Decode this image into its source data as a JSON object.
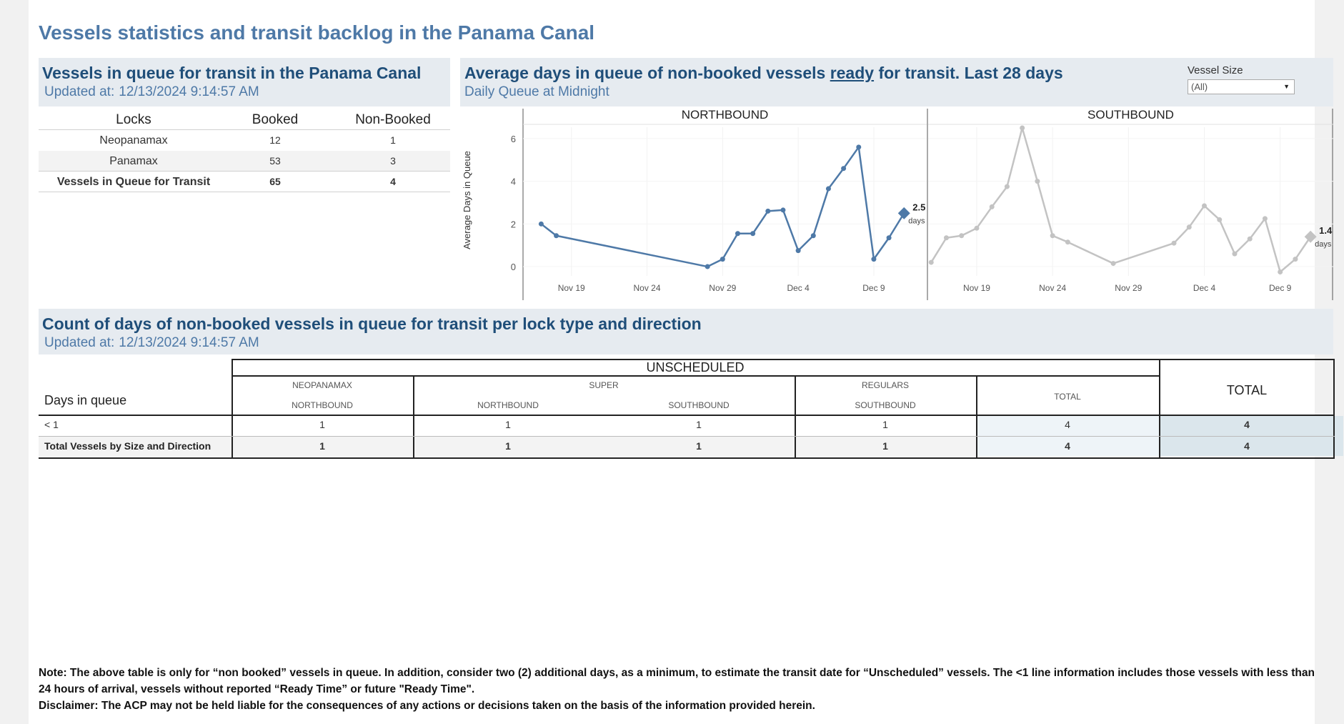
{
  "page": {
    "title": "Vessels statistics and transit backlog in the Panama Canal"
  },
  "queue_panel": {
    "title": "Vessels in queue for transit in the Panama Canal",
    "updated_label": "Updated at:",
    "updated_value": "12/13/2024 9:14:57 AM",
    "columns": [
      "Locks",
      "Booked",
      "Non-Booked"
    ],
    "rows": [
      {
        "lock": "Neopanamax",
        "booked": "12",
        "non_booked": "1"
      },
      {
        "lock": "Panamax",
        "booked": "53",
        "non_booked": "3"
      },
      {
        "lock": "Vessels in Queue for Transit",
        "booked": "65",
        "non_booked": "4"
      }
    ]
  },
  "days_panel": {
    "title_pre": "Average days in queue of non-booked vessels ",
    "title_link": "ready",
    "title_post": " for transit. Last 28 days",
    "subtitle": "Daily Queue at Midnight"
  },
  "vessel_size_filter": {
    "label": "Vessel Size",
    "value": "(All)",
    "icon": "chevron-down-icon"
  },
  "chart_data": [
    {
      "type": "line",
      "title": "NORTHBOUND",
      "ylabel": "Average Days in Queue",
      "ylim": [
        -0.3,
        6.8
      ],
      "yticks": [
        0,
        2,
        4,
        6
      ],
      "xticks": [
        "Nov 19",
        "Nov 24",
        "Nov 29",
        "Dec 4",
        "Dec 9"
      ],
      "xtick_positions": [
        0,
        5,
        10,
        15,
        20
      ],
      "xlim": [
        -3.2,
        23.5
      ],
      "color": "#4e79a7",
      "x": [
        -2,
        -1,
        9,
        10,
        11,
        12,
        13,
        14,
        15,
        16,
        17,
        18,
        19,
        20,
        21,
        22
      ],
      "values": [
        2.0,
        1.45,
        0.0,
        0.35,
        1.55,
        1.55,
        2.6,
        2.65,
        0.75,
        1.45,
        3.65,
        4.6,
        5.6,
        0.35,
        1.35,
        2.5
      ],
      "last_label": "2.5",
      "last_unit": "days"
    },
    {
      "type": "line",
      "title": "SOUTHBOUND",
      "ylim": [
        -0.3,
        6.8
      ],
      "yticks": [
        0,
        2,
        4,
        6
      ],
      "xticks": [
        "Nov 19",
        "Nov 24",
        "Nov 29",
        "Dec 4",
        "Dec 9"
      ],
      "xtick_positions": [
        0,
        5,
        10,
        15,
        20
      ],
      "xlim": [
        -3.2,
        23.5
      ],
      "color": "#c3c3c3",
      "x": [
        -3,
        -2,
        -1,
        0,
        1,
        2,
        3,
        4,
        5,
        6,
        9,
        13,
        14,
        15,
        16,
        17,
        18,
        19,
        20,
        21,
        22
      ],
      "values": [
        0.2,
        1.35,
        1.45,
        1.8,
        2.8,
        3.75,
        6.5,
        4.0,
        1.45,
        1.15,
        0.15,
        1.1,
        1.85,
        2.85,
        2.2,
        0.6,
        1.3,
        2.25,
        -0.25,
        0.35,
        1.4
      ],
      "last_label": "1.4",
      "last_unit": "days"
    }
  ],
  "count_panel": {
    "title": "Count of days of non-booked vessels in queue for transit per lock type and direction",
    "updated_label": "Updated at:",
    "updated_value": "12/13/2024 9:14:57 AM",
    "row_header": "Days in queue",
    "group_header": "UNSCHEDULED",
    "total_header": "TOTAL",
    "columns": [
      {
        "size": "NEOPANAMAX",
        "direction": "NORTHBOUND"
      },
      {
        "size": "SUPER",
        "direction": "NORTHBOUND"
      },
      {
        "size": "",
        "direction": "SOUTHBOUND"
      },
      {
        "size": "REGULARS",
        "direction": "SOUTHBOUND"
      },
      {
        "size": "TOTAL",
        "direction": ""
      }
    ],
    "rows": [
      {
        "label": "< 1",
        "values": [
          "1",
          "1",
          "1",
          "1",
          "4"
        ],
        "total": "4"
      },
      {
        "label": "Total Vessels by Size and Direction",
        "values": [
          "1",
          "1",
          "1",
          "1",
          "4"
        ],
        "total": "4"
      }
    ]
  },
  "note": {
    "line1": "Note:  The above table is only for “non booked” vessels in queue. In addition, consider two (2) additional days, as a minimum, to estimate the transit date for “Unscheduled” vessels.  The <1 line information includes those vessels with less than 24 hours of arrival, vessels without reported “Ready Time” or future \"Ready Time\".",
    "line2": "Disclaimer: The ACP may not be held liable for the consequences of any actions or decisions taken on the basis of the information provided herein."
  }
}
